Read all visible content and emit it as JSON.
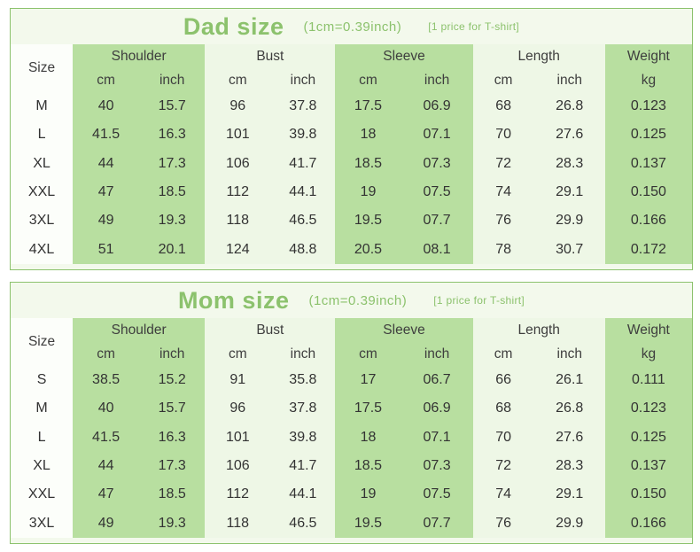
{
  "tables": [
    {
      "title": "Dad size",
      "conversion": "(1cm=0.39inch)",
      "note": "[1 price for T-shirt]",
      "headers": {
        "size": "Size",
        "shoulder": "Shoulder",
        "bust": "Bust",
        "sleeve": "Sleeve",
        "length": "Length",
        "weight": "Weight",
        "cm": "cm",
        "inch": "inch",
        "kg": "kg"
      },
      "rows": [
        [
          "M",
          "40",
          "15.7",
          "96",
          "37.8",
          "17.5",
          "06.9",
          "68",
          "26.8",
          "0.123"
        ],
        [
          "L",
          "41.5",
          "16.3",
          "101",
          "39.8",
          "18",
          "07.1",
          "70",
          "27.6",
          "0.125"
        ],
        [
          "XL",
          "44",
          "17.3",
          "106",
          "41.7",
          "18.5",
          "07.3",
          "72",
          "28.3",
          "0.137"
        ],
        [
          "XXL",
          "47",
          "18.5",
          "112",
          "44.1",
          "19",
          "07.5",
          "74",
          "29.1",
          "0.150"
        ],
        [
          "3XL",
          "49",
          "19.3",
          "118",
          "46.5",
          "19.5",
          "07.7",
          "76",
          "29.9",
          "0.166"
        ],
        [
          "4XL",
          "51",
          "20.1",
          "124",
          "48.8",
          "20.5",
          "08.1",
          "78",
          "30.7",
          "0.172"
        ]
      ]
    },
    {
      "title": "Mom size",
      "conversion": "(1cm=0.39inch)",
      "note": "[1 price for T-shirt]",
      "headers": {
        "size": "Size",
        "shoulder": "Shoulder",
        "bust": "Bust",
        "sleeve": "Sleeve",
        "length": "Length",
        "weight": "Weight",
        "cm": "cm",
        "inch": "inch",
        "kg": "kg"
      },
      "rows": [
        [
          "S",
          "38.5",
          "15.2",
          "91",
          "35.8",
          "17",
          "06.7",
          "66",
          "26.1",
          "0.111"
        ],
        [
          "M",
          "40",
          "15.7",
          "96",
          "37.8",
          "17.5",
          "06.9",
          "68",
          "26.8",
          "0.123"
        ],
        [
          "L",
          "41.5",
          "16.3",
          "101",
          "39.8",
          "18",
          "07.1",
          "70",
          "27.6",
          "0.125"
        ],
        [
          "XL",
          "44",
          "17.3",
          "106",
          "41.7",
          "18.5",
          "07.3",
          "72",
          "28.3",
          "0.137"
        ],
        [
          "XXL",
          "47",
          "18.5",
          "112",
          "44.1",
          "19",
          "07.5",
          "74",
          "29.1",
          "0.150"
        ],
        [
          "3XL",
          "49",
          "19.3",
          "118",
          "46.5",
          "19.5",
          "07.7",
          "76",
          "29.9",
          "0.166"
        ]
      ]
    }
  ],
  "colors": {
    "accent_green": "#8cc26d",
    "header_green": "#b8dfa0",
    "light_band": "#eef7e6",
    "border": "#8cc26d"
  }
}
